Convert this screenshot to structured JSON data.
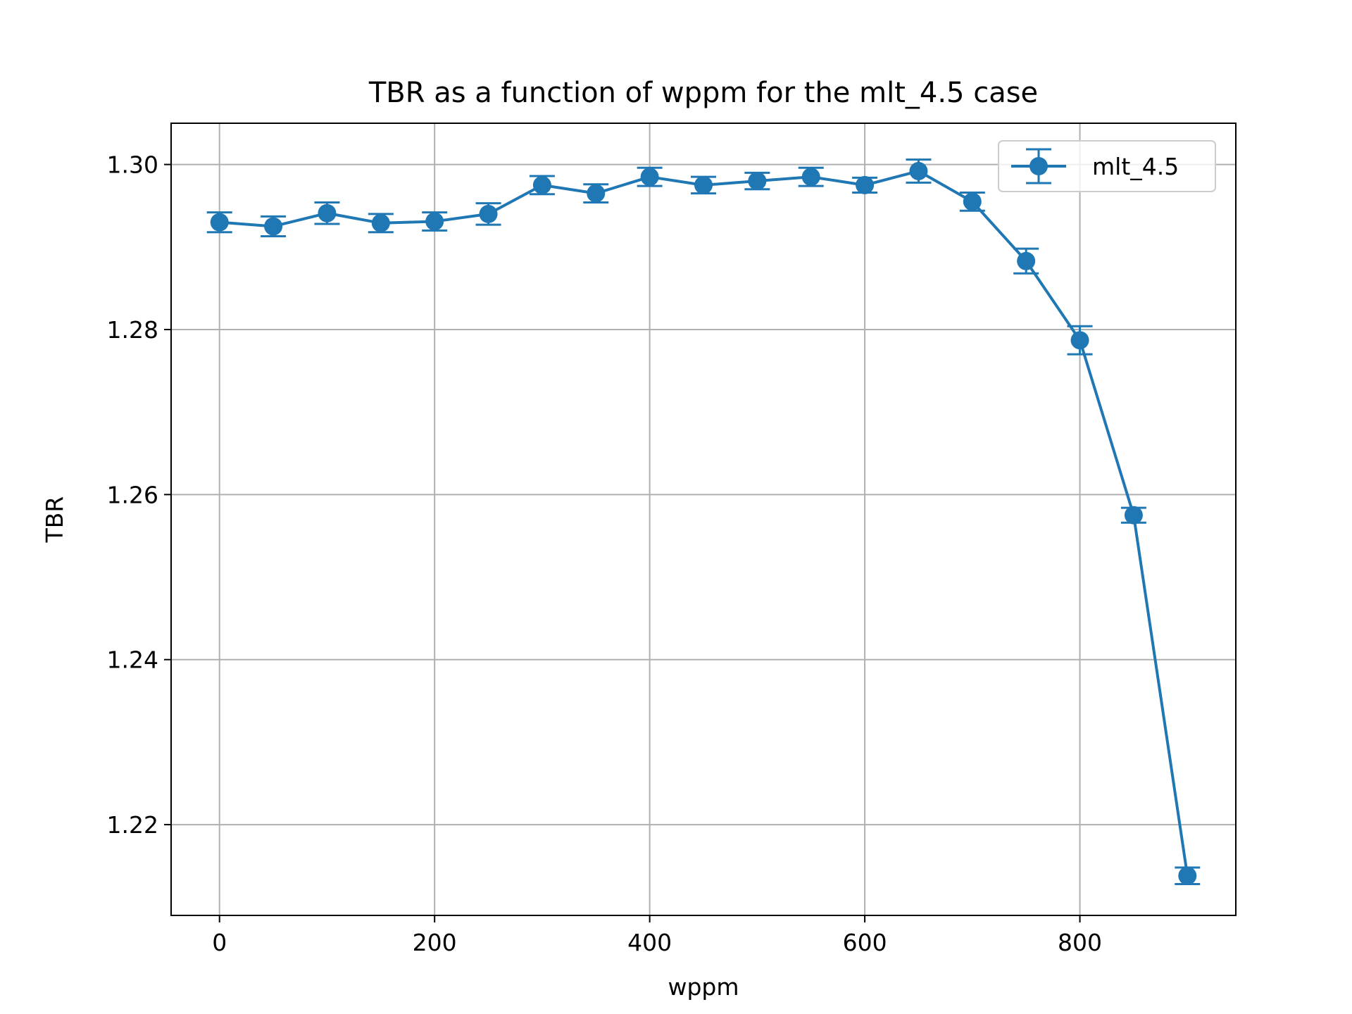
{
  "chart_data": {
    "type": "line",
    "title": "TBR as a function of wppm for the mlt_4.5 case",
    "xlabel": "wppm",
    "ylabel": "TBR",
    "xlim": [
      -45,
      945
    ],
    "ylim": [
      1.209,
      1.305
    ],
    "xticks": [
      0,
      200,
      400,
      600,
      800
    ],
    "yticks": [
      1.22,
      1.24,
      1.26,
      1.28,
      1.3
    ],
    "ytick_labels": [
      "1.22",
      "1.24",
      "1.26",
      "1.28",
      "1.30"
    ],
    "grid": true,
    "legend_position": "top-right",
    "series": [
      {
        "name": "mlt_4.5",
        "color": "#1f77b4",
        "marker": "circle",
        "errorbars": true,
        "x": [
          0,
          50,
          100,
          150,
          200,
          250,
          300,
          350,
          400,
          450,
          500,
          550,
          600,
          650,
          700,
          750,
          800,
          850,
          900
        ],
        "y": [
          1.293,
          1.2925,
          1.2941,
          1.2929,
          1.2931,
          1.294,
          1.2975,
          1.2965,
          1.2985,
          1.2975,
          1.298,
          1.2985,
          1.2975,
          1.2992,
          1.2955,
          1.2883,
          1.2787,
          1.2575,
          1.2138
        ],
        "yerr": [
          0.0012,
          0.0012,
          0.0013,
          0.0011,
          0.0011,
          0.0013,
          0.0011,
          0.0011,
          0.0011,
          0.001,
          0.001,
          0.0011,
          0.0009,
          0.0014,
          0.0011,
          0.0015,
          0.0017,
          0.0009,
          0.001
        ]
      }
    ]
  }
}
